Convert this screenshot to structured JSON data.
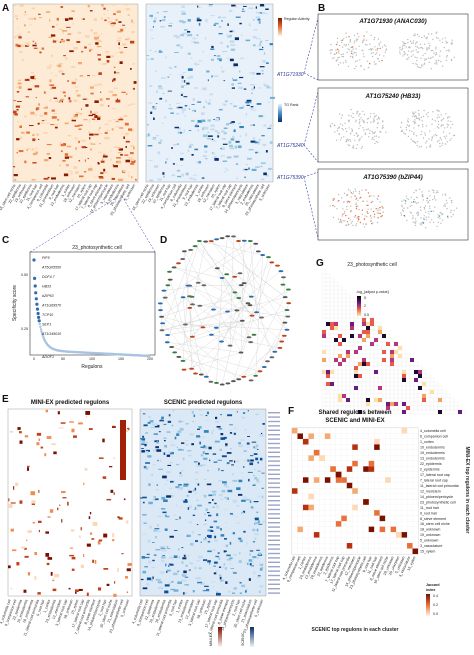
{
  "panels": {
    "A": {
      "label": "A",
      "legend_orange_title": "Regulon Activity",
      "legend_blue_title": "TG Rank",
      "highlighted_genes": [
        "AT1G71930",
        "AT1G75240",
        "AT1G75390"
      ],
      "cluster_labels": [
        "16_stem cell niche",
        "22_epidermis",
        "19_unknown",
        "10_epidermis",
        "11_root hair",
        "4_companion cell",
        "6_columella",
        "21_procambium",
        "9_root hair",
        "13_endodermis",
        "1_cortex",
        "18_unknown",
        "12_meristem",
        "15_xylem",
        "17_lateral root cap",
        "7_lateral root cap",
        "8_sieve element",
        "14_phloem/pericycle",
        "3_vasculature",
        "2_endodermis",
        "20_vasculature",
        "23_photosynthetic cell",
        "5_unknown"
      ],
      "selected_cluster": "23_photosynthetic cell"
    },
    "B": {
      "label": "B",
      "genes": [
        "AT1G71930 (ANAC030)",
        "AT1G75240 (HB33)",
        "AT1G75390 (bZIP44)"
      ]
    },
    "C": {
      "label": "C",
      "title": "23_photosynthetic cell",
      "ylabel": "Specificity score",
      "xlabel": "Regulons",
      "annotations": [
        "PIF5",
        "AT5G05550",
        "DOF4.7",
        "HB33",
        "bZIP63",
        "AT1G69570",
        "TCP10",
        "SEP1",
        "AT1G49010",
        "ADOF1"
      ]
    },
    "D": {
      "label": "D"
    },
    "E": {
      "label": "E",
      "title_left": "MINI-EX predicted regulons",
      "title_right": "SCENIC predicted regulons",
      "legend_left": "MINI-EX",
      "legend_right": "SCENIC",
      "cluster_labels": [
        "4_columella cell",
        "6_companion cell",
        "22_epidermis",
        "19_endodermis",
        "10_endodermis",
        "11_lateral root primordia",
        "9_root hair",
        "1_cortex",
        "13_endodermis",
        "12_meristem",
        "3_lateral root cap",
        "18_unknown",
        "15_xylem",
        "17_lateral root cap",
        "7_lateral root primordia",
        "8_sieve element",
        "14_phloem/pericycle",
        "2_root hair",
        "20_stem cell niche",
        "21_vasculature",
        "23_photosynthetic cell",
        "5_unknown"
      ]
    },
    "F": {
      "label": "F",
      "title_line1": "Shared regulons between",
      "title_line2": "SCENIC and MINI-EX",
      "ylabel": "MINI-EX top regulons in each cluster",
      "xlabel": "SCENIC top regulons in each cluster",
      "legend_title_line1": "Jaccard",
      "legend_title_line2": "index",
      "legend_ticks": [
        "0.4",
        "0.2",
        "0.0"
      ],
      "row_labels": [
        "4_columella cell",
        "6_companion cell",
        "1_cortex",
        "10_endodermis",
        "19_endodermis",
        "13_endodermis",
        "22_epidermis",
        "2_epidermis",
        "17_lateral root cap",
        "7_lateral root cap",
        "11_lateral root primordia",
        "12_meristem",
        "14_phloem/pericycle",
        "23_photosynthetic cell",
        "11_root hair",
        "9_root hair",
        "8_sieve element",
        "16_stem cell niche",
        "18_unknown",
        "19_unknown",
        "5_unknown",
        "3_vasculature",
        "15_xylem"
      ],
      "col_labels": [
        "4_columella cell",
        "6_companion cell",
        "1_cortex",
        "10_endodermis",
        "13_endodermis",
        "19_endodermis",
        "22_epidermis",
        "2_epidermis",
        "7_lateral root cap",
        "17_lateral root cap",
        "11_lateral root primordia",
        "12_meristem",
        "14_phloem/pericycle",
        "23_photosynthetic cell",
        "9_root hair",
        "11_root hair",
        "8_sieve element",
        "16_stem cell niche",
        "18_unknown",
        "20_unknown",
        "5_unknown",
        "3_vasculature",
        "15_xylem"
      ]
    },
    "G": {
      "label": "G",
      "title": "23_photosynthetic cell",
      "legend_title": "-log_{adjust p-value}",
      "legend_ticks": [
        "5",
        "2",
        "0.5"
      ]
    }
  },
  "colors": {
    "orange_dark": "#8b1a00",
    "orange_mid": "#e8713a",
    "orange_light": "#fbe3c8",
    "blue_dark": "#08306b",
    "blue_mid": "#4a90c8",
    "blue_light": "#deebf7",
    "highlight_blue": "#3344aa",
    "scatter_point": "#a9c4e2",
    "scatter_top": "#2b6cb0"
  }
}
